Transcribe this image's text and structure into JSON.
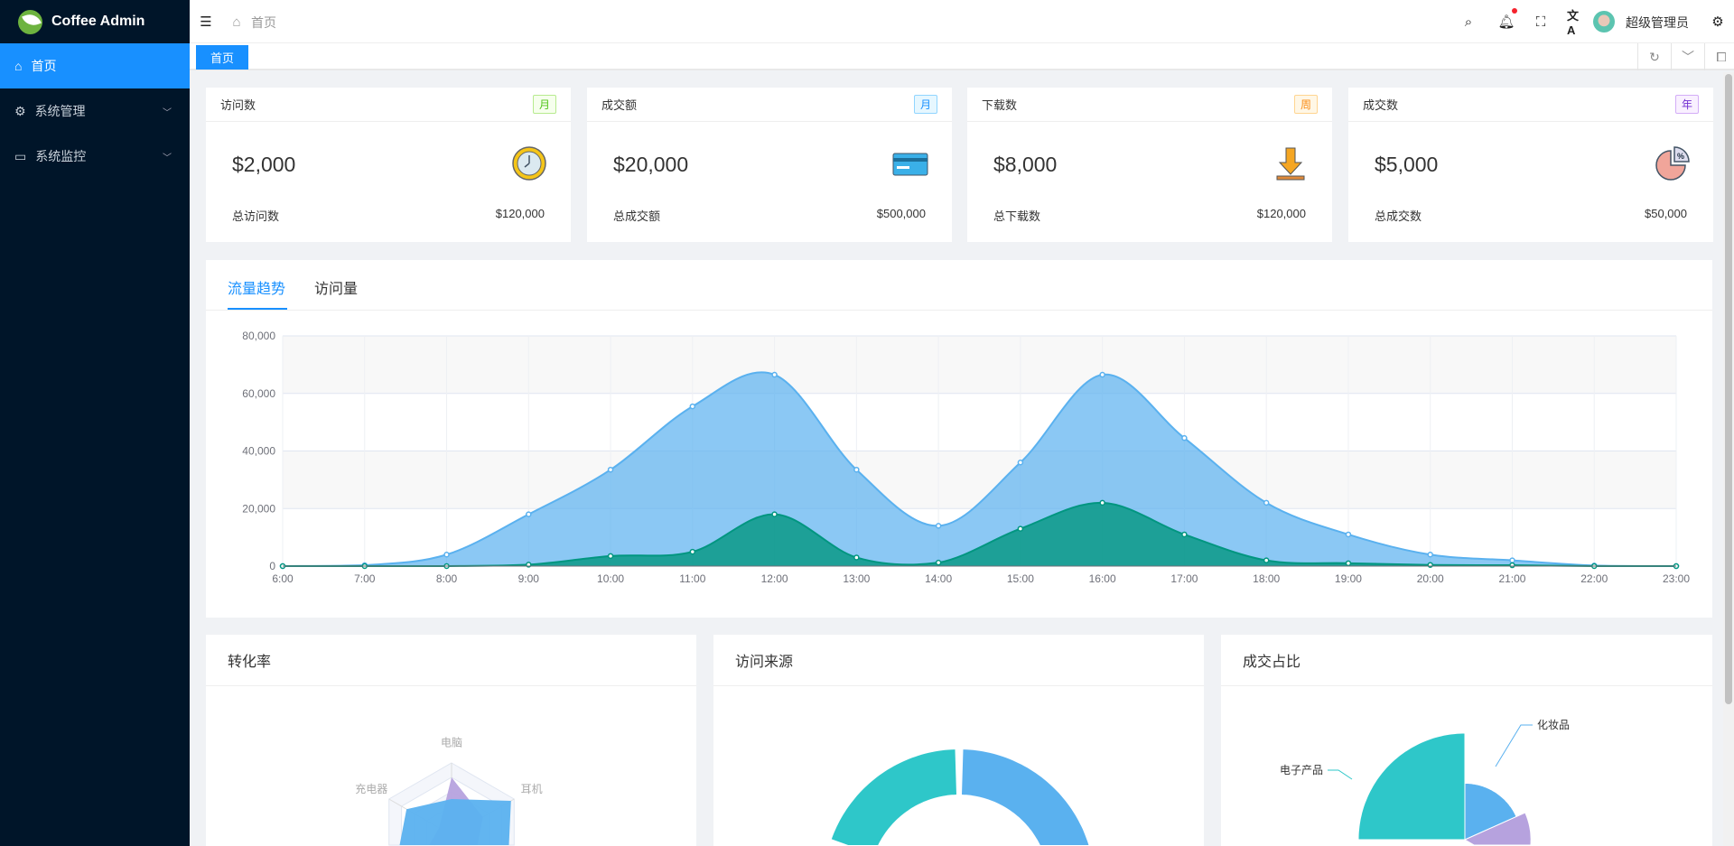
{
  "app": {
    "title": "Coffee Admin"
  },
  "sidebar": {
    "items": [
      {
        "label": "首页",
        "icon": "home-icon",
        "active": true
      },
      {
        "label": "系统管理",
        "icon": "gear-icon"
      },
      {
        "label": "系统监控",
        "icon": "monitor-icon"
      }
    ]
  },
  "header": {
    "breadcrumb": "首页",
    "user_name": "超级管理员",
    "has_notification": true
  },
  "tabs": {
    "items": [
      {
        "label": "首页",
        "active": true
      }
    ]
  },
  "stats": [
    {
      "title": "访问数",
      "tag": "月",
      "tag_color": "#52c41a",
      "value": "$2,000",
      "icon": "clock-icon",
      "total_label": "总访问数",
      "total": "$120,000"
    },
    {
      "title": "成交额",
      "tag": "月",
      "tag_color": "#1890ff",
      "value": "$20,000",
      "icon": "credit-card-icon",
      "total_label": "总成交额",
      "total": "$500,000"
    },
    {
      "title": "下载数",
      "tag": "周",
      "tag_color": "#fa8c16",
      "value": "$8,000",
      "icon": "download-icon",
      "total_label": "总下载数",
      "total": "$120,000"
    },
    {
      "title": "成交数",
      "tag": "年",
      "tag_color": "#722ed1",
      "value": "$5,000",
      "icon": "pie-chart-icon",
      "total_label": "总成交数",
      "total": "$50,000"
    }
  ],
  "trend": {
    "tabs": [
      "流量趋势",
      "访问量"
    ],
    "active_tab": 0
  },
  "chart_data": [
    {
      "type": "area",
      "x": [
        "6:00",
        "7:00",
        "8:00",
        "9:00",
        "10:00",
        "11:00",
        "12:00",
        "13:00",
        "14:00",
        "15:00",
        "16:00",
        "17:00",
        "18:00",
        "19:00",
        "20:00",
        "21:00",
        "22:00",
        "23:00"
      ],
      "ylim": [
        0,
        80000
      ],
      "yticks": [
        "0",
        "20,000",
        "40,000",
        "60,000",
        "80,000"
      ],
      "grid": true,
      "smooth": true,
      "series": [
        {
          "color": "#5ab1ef",
          "values": [
            0,
            300,
            4000,
            18000,
            33500,
            55500,
            66500,
            33500,
            14000,
            36000,
            66500,
            44500,
            22000,
            11000,
            4000,
            2000,
            200,
            0
          ]
        },
        {
          "color": "#019680",
          "values": [
            0,
            0,
            0,
            500,
            3500,
            5000,
            18000,
            3000,
            1200,
            13000,
            22000,
            11000,
            2000,
            1000,
            400,
            300,
            0,
            0
          ]
        }
      ]
    },
    {
      "type": "radar",
      "title": "转化率",
      "indicators": [
        "电脑",
        "耳机",
        "",
        "",
        "",
        "充电器"
      ],
      "max": 100,
      "series": [
        {
          "color": "#b6a2de",
          "values": [
            80,
            50,
            40,
            40,
            40,
            20
          ]
        },
        {
          "color": "#5ab1ef",
          "values": [
            50,
            95,
            90,
            80,
            90,
            72
          ]
        }
      ]
    },
    {
      "type": "pie",
      "title": "访问来源",
      "donut": true,
      "series": [
        {
          "color": "#5ab1ef",
          "value": 50
        },
        {
          "color": "#67e0e3",
          "value": 18
        },
        {
          "color": "#2ec7c9",
          "value": 17
        }
      ]
    },
    {
      "type": "pie",
      "title": "成交占比",
      "rose": true,
      "series": [
        {
          "name": "化妆品",
          "color": "#5ab1ef",
          "value": 53
        },
        {
          "name": "",
          "color": "#b6a2de",
          "value": 62
        },
        {
          "name": "电子产品",
          "color": "#2ec7c9",
          "value": 100
        }
      ]
    }
  ]
}
